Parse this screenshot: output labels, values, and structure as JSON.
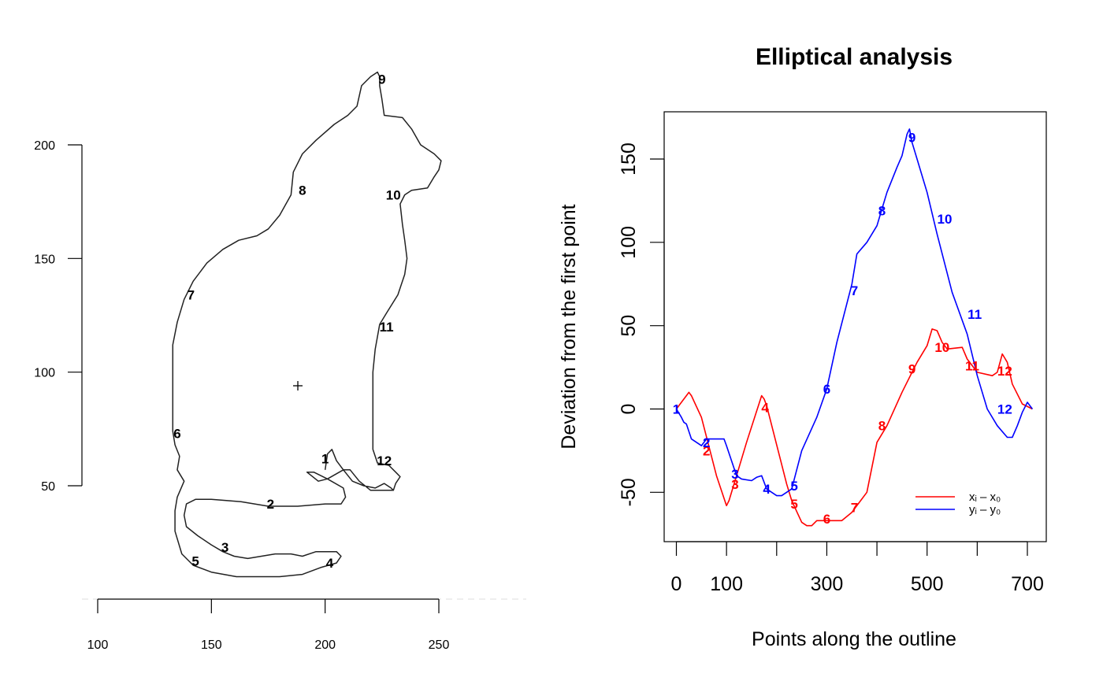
{
  "chart_data": [
    {
      "type": "outline",
      "panel": "left",
      "title": "",
      "xlabel": "",
      "ylabel": "",
      "xlim": [
        93,
        288
      ],
      "ylim": [
        8,
        248
      ],
      "x_ticks": [
        100,
        150,
        200,
        250
      ],
      "y_ticks": [
        50,
        100,
        150,
        200
      ],
      "line_color": "#222222",
      "centroid": {
        "x": 188,
        "y": 94
      },
      "outline": [
        [
          200,
          57
        ],
        [
          201,
          64
        ],
        [
          203,
          66
        ],
        [
          205,
          61
        ],
        [
          208,
          57
        ],
        [
          212,
          52
        ],
        [
          217,
          50
        ],
        [
          222,
          49
        ],
        [
          226,
          51
        ],
        [
          229,
          49
        ],
        [
          230,
          48
        ],
        [
          220,
          48
        ],
        [
          215,
          52
        ],
        [
          211,
          57
        ],
        [
          208,
          57
        ],
        [
          201,
          53
        ],
        [
          195,
          56
        ],
        [
          192,
          56
        ],
        [
          197,
          52
        ],
        [
          201,
          53
        ],
        [
          208,
          49
        ],
        [
          209,
          45
        ],
        [
          207,
          42
        ],
        [
          200,
          42
        ],
        [
          188,
          41
        ],
        [
          175,
          41
        ],
        [
          163,
          43
        ],
        [
          150,
          44
        ],
        [
          143,
          44
        ],
        [
          139,
          42
        ],
        [
          138,
          37
        ],
        [
          139,
          32
        ],
        [
          144,
          28
        ],
        [
          150,
          24
        ],
        [
          155,
          21
        ],
        [
          160,
          19
        ],
        [
          166,
          18
        ],
        [
          172,
          19
        ],
        [
          178,
          20
        ],
        [
          185,
          20
        ],
        [
          190,
          19
        ],
        [
          196,
          21
        ],
        [
          205,
          21
        ],
        [
          207,
          19
        ],
        [
          205,
          16
        ],
        [
          198,
          14
        ],
        [
          190,
          11
        ],
        [
          180,
          10
        ],
        [
          170,
          10
        ],
        [
          161,
          10
        ],
        [
          150,
          12
        ],
        [
          142,
          15
        ],
        [
          137,
          20
        ],
        [
          134,
          30
        ],
        [
          134,
          39
        ],
        [
          135,
          45
        ],
        [
          138,
          52
        ],
        [
          135,
          57
        ],
        [
          136,
          63
        ],
        [
          134,
          68
        ],
        [
          133,
          74
        ],
        [
          133,
          92
        ],
        [
          133,
          112
        ],
        [
          135,
          122
        ],
        [
          138,
          132
        ],
        [
          142,
          140
        ],
        [
          148,
          148
        ],
        [
          155,
          154
        ],
        [
          162,
          158
        ],
        [
          170,
          160
        ],
        [
          175,
          163
        ],
        [
          180,
          169
        ],
        [
          185,
          178
        ],
        [
          186,
          188
        ],
        [
          190,
          196
        ],
        [
          196,
          202
        ],
        [
          204,
          209
        ],
        [
          210,
          213
        ],
        [
          214,
          217
        ],
        [
          216,
          226
        ],
        [
          220,
          230
        ],
        [
          223,
          232
        ],
        [
          224,
          230
        ],
        [
          224,
          226
        ],
        [
          225,
          220
        ],
        [
          226,
          213
        ],
        [
          234,
          212
        ],
        [
          238,
          207
        ],
        [
          242,
          200
        ],
        [
          248,
          196
        ],
        [
          251,
          193
        ],
        [
          250,
          189
        ],
        [
          248,
          186
        ],
        [
          245,
          181
        ],
        [
          238,
          180
        ],
        [
          235,
          178
        ],
        [
          233,
          174
        ],
        [
          234,
          165
        ],
        [
          235,
          158
        ],
        [
          236,
          150
        ],
        [
          235,
          143
        ],
        [
          232,
          134
        ],
        [
          227,
          126
        ],
        [
          224,
          121
        ],
        [
          222,
          110
        ],
        [
          221,
          100
        ],
        [
          221,
          80
        ],
        [
          221,
          66
        ],
        [
          223,
          60
        ],
        [
          228,
          59
        ],
        [
          231,
          56
        ],
        [
          233,
          54
        ],
        [
          231,
          51
        ],
        [
          230,
          48
        ]
      ],
      "labels": [
        {
          "text": "1",
          "x": 200,
          "y": 62
        },
        {
          "text": "2",
          "x": 176,
          "y": 42
        },
        {
          "text": "3",
          "x": 156,
          "y": 23
        },
        {
          "text": "4",
          "x": 202,
          "y": 16
        },
        {
          "text": "5",
          "x": 143,
          "y": 17
        },
        {
          "text": "6",
          "x": 135,
          "y": 73
        },
        {
          "text": "7",
          "x": 141,
          "y": 134
        },
        {
          "text": "8",
          "x": 190,
          "y": 180
        },
        {
          "text": "9",
          "x": 225,
          "y": 229
        },
        {
          "text": "10",
          "x": 230,
          "y": 178
        },
        {
          "text": "11",
          "x": 227,
          "y": 120
        },
        {
          "text": "12",
          "x": 226,
          "y": 61
        }
      ]
    },
    {
      "type": "line",
      "panel": "right",
      "title": "Elliptical analysis",
      "xlabel": "Points along the outline",
      "ylabel": "Deviation from the first point",
      "xlim": [
        -20,
        740
      ],
      "ylim": [
        -79,
        178
      ],
      "x_ticks": [
        0,
        100,
        200,
        300,
        400,
        500,
        600,
        700
      ],
      "x_tick_labels": [
        "0",
        "100",
        "",
        "300",
        "",
        "500",
        "",
        "700"
      ],
      "y_ticks": [
        -50,
        0,
        50,
        100,
        150
      ],
      "y_tick_labels": [
        "-50",
        "0",
        "50",
        "100",
        "150"
      ],
      "legend_position": "bottom-right",
      "grid": false,
      "series": [
        {
          "name": "xᵢ – x₀",
          "color": "#ff0000",
          "x": [
            0,
            20,
            25,
            30,
            50,
            80,
            100,
            105,
            120,
            140,
            170,
            175,
            180,
            220,
            230,
            250,
            260,
            270,
            280,
            300,
            330,
            350,
            380,
            400,
            420,
            450,
            470,
            480,
            500,
            510,
            520,
            530,
            540,
            570,
            580,
            600,
            630,
            640,
            650,
            660,
            670,
            690,
            710
          ],
          "y": [
            0,
            8,
            10,
            8,
            -5,
            -40,
            -58,
            -55,
            -40,
            -20,
            8,
            6,
            2,
            -45,
            -55,
            -68,
            -70,
            -70,
            -67,
            -67,
            -67,
            -62,
            -50,
            -20,
            -10,
            10,
            22,
            28,
            38,
            48,
            47,
            40,
            36,
            37,
            30,
            22,
            20,
            22,
            33,
            28,
            15,
            3,
            0
          ],
          "labels": [
            {
              "text": "2",
              "x": 60,
              "y": -25
            },
            {
              "text": "3",
              "x": 117,
              "y": -45
            },
            {
              "text": "4",
              "x": 177,
              "y": 1
            },
            {
              "text": "5",
              "x": 235,
              "y": -57
            },
            {
              "text": "6",
              "x": 300,
              "y": -66
            },
            {
              "text": "7",
              "x": 355,
              "y": -59
            },
            {
              "text": "8",
              "x": 410,
              "y": -10
            },
            {
              "text": "9",
              "x": 470,
              "y": 24
            },
            {
              "text": "10",
              "x": 530,
              "y": 37
            },
            {
              "text": "11",
              "x": 590,
              "y": 26
            },
            {
              "text": "12",
              "x": 655,
              "y": 23
            }
          ]
        },
        {
          "name": "yᵢ – y₀",
          "color": "#0000ff",
          "x": [
            0,
            10,
            15,
            20,
            30,
            50,
            60,
            80,
            95,
            100,
            120,
            130,
            150,
            160,
            170,
            180,
            200,
            210,
            230,
            250,
            280,
            300,
            320,
            350,
            360,
            380,
            400,
            410,
            420,
            440,
            450,
            460,
            465,
            470,
            480,
            500,
            520,
            550,
            580,
            600,
            620,
            640,
            660,
            670,
            680,
            690,
            700,
            710
          ],
          "y": [
            0,
            -5,
            -8,
            -9,
            -18,
            -22,
            -18,
            -18,
            -18,
            -22,
            -40,
            -42,
            -43,
            -41,
            -40,
            -48,
            -52,
            -52,
            -48,
            -25,
            -5,
            12,
            40,
            75,
            93,
            100,
            110,
            120,
            130,
            145,
            152,
            165,
            168,
            160,
            150,
            130,
            105,
            70,
            45,
            20,
            0,
            -10,
            -17,
            -17,
            -10,
            -2,
            4,
            0
          ],
          "labels": [
            {
              "text": "1",
              "x": 0,
              "y": 0
            },
            {
              "text": "2",
              "x": 60,
              "y": -20
            },
            {
              "text": "3",
              "x": 117,
              "y": -39
            },
            {
              "text": "4",
              "x": 180,
              "y": -48
            },
            {
              "text": "5",
              "x": 235,
              "y": -46
            },
            {
              "text": "6",
              "x": 300,
              "y": 12
            },
            {
              "text": "7",
              "x": 355,
              "y": 71
            },
            {
              "text": "8",
              "x": 410,
              "y": 119
            },
            {
              "text": "9",
              "x": 470,
              "y": 163
            },
            {
              "text": "10",
              "x": 535,
              "y": 114
            },
            {
              "text": "11",
              "x": 595,
              "y": 57
            },
            {
              "text": "12",
              "x": 655,
              "y": 0
            }
          ]
        }
      ]
    }
  ]
}
